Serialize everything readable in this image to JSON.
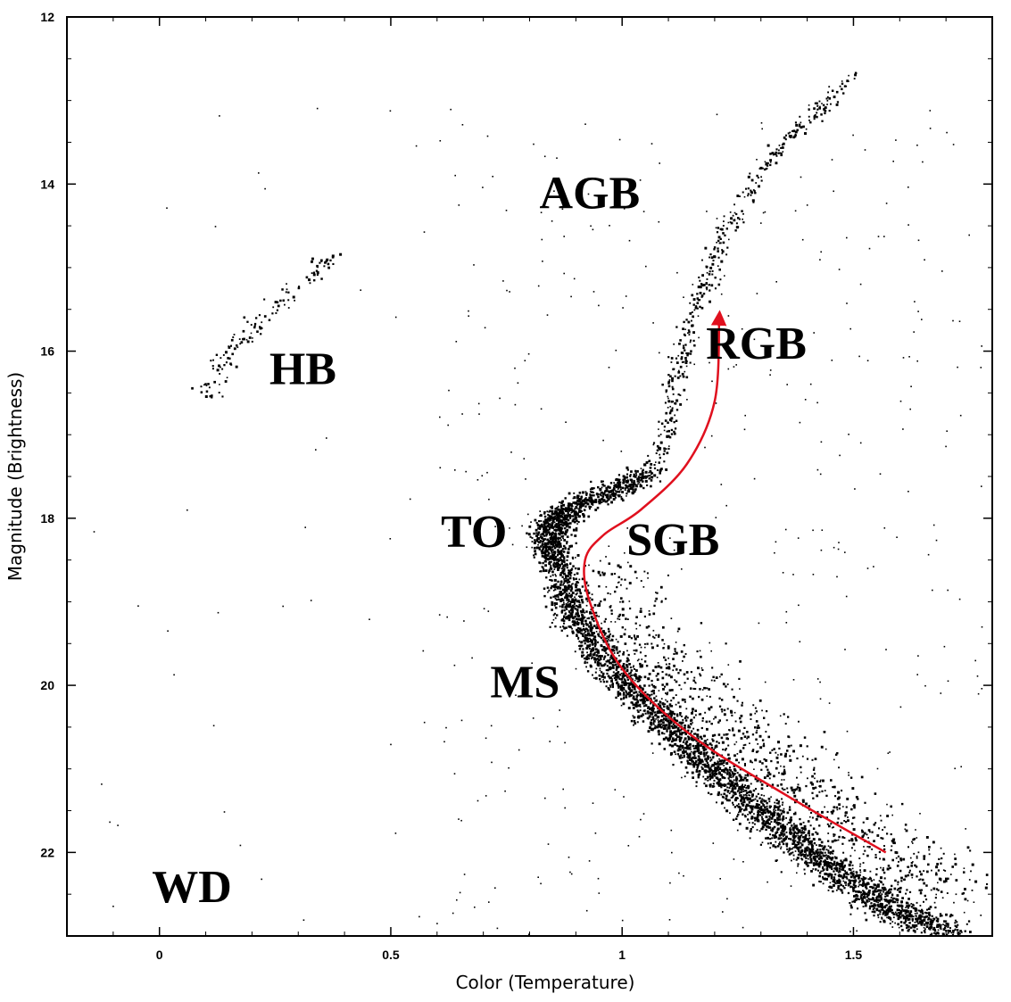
{
  "chart_data": {
    "type": "scatter",
    "title": "",
    "xlabel": "Color (Temperature)",
    "ylabel": "Magnitude (Brightness)",
    "xlim": [
      -0.2,
      1.8
    ],
    "ylim": [
      23.0,
      12.0
    ],
    "y_inverted": true,
    "xticks": [
      0,
      0.5,
      1,
      1.5
    ],
    "xtick_labels": [
      "0",
      "0.5",
      "1",
      "1.5"
    ],
    "yticks": [
      12,
      14,
      16,
      18,
      20,
      22
    ],
    "ytick_labels": [
      "12",
      "14",
      "16",
      "18",
      "20",
      "22"
    ],
    "grid": false,
    "legend": "none",
    "point_color": "#000000",
    "track_color": "#e0101e",
    "region_labels": [
      {
        "text": "AGB",
        "x": 0.93,
        "y": 14.1
      },
      {
        "text": "RGB",
        "x": 1.29,
        "y": 15.9
      },
      {
        "text": "HB",
        "x": 0.31,
        "y": 16.2
      },
      {
        "text": "TO",
        "x": 0.68,
        "y": 18.15
      },
      {
        "text": "SGB",
        "x": 1.11,
        "y": 18.25
      },
      {
        "text": "MS",
        "x": 0.79,
        "y": 19.95
      },
      {
        "text": "WD",
        "x": 0.07,
        "y": 22.4
      }
    ],
    "sequences": [
      {
        "name": "MS",
        "points": [
          [
            1.7,
            22.95
          ],
          [
            1.6,
            22.7
          ],
          [
            1.5,
            22.35
          ],
          [
            1.4,
            22.0
          ],
          [
            1.3,
            21.5
          ],
          [
            1.2,
            21.0
          ],
          [
            1.1,
            20.5
          ],
          [
            1.0,
            19.95
          ],
          [
            0.95,
            19.6
          ],
          [
            0.9,
            19.2
          ],
          [
            0.87,
            18.8
          ],
          [
            0.85,
            18.4
          ]
        ],
        "spread": 0.022,
        "density": 3200
      },
      {
        "name": "TO",
        "points": [
          [
            0.85,
            18.4
          ],
          [
            0.84,
            18.25
          ],
          [
            0.85,
            18.05
          ],
          [
            0.88,
            17.9
          ]
        ],
        "spread": 0.02,
        "density": 500
      },
      {
        "name": "SGB",
        "points": [
          [
            0.88,
            17.9
          ],
          [
            0.93,
            17.75
          ],
          [
            0.98,
            17.65
          ],
          [
            1.03,
            17.55
          ],
          [
            1.06,
            17.4
          ]
        ],
        "spread": 0.02,
        "density": 420
      },
      {
        "name": "RGB",
        "points": [
          [
            1.06,
            17.4
          ],
          [
            1.09,
            17.0
          ],
          [
            1.11,
            16.5
          ],
          [
            1.13,
            16.0
          ],
          [
            1.15,
            15.6
          ],
          [
            1.18,
            15.2
          ],
          [
            1.2,
            14.8
          ],
          [
            1.24,
            14.4
          ],
          [
            1.3,
            13.8
          ],
          [
            1.4,
            13.2
          ],
          [
            1.5,
            12.7
          ]
        ],
        "spread": 0.012,
        "density": 420
      },
      {
        "name": "HB",
        "points": [
          [
            0.1,
            16.6
          ],
          [
            0.12,
            16.2
          ],
          [
            0.16,
            15.9
          ],
          [
            0.22,
            15.6
          ],
          [
            0.3,
            15.2
          ],
          [
            0.38,
            14.8
          ]
        ],
        "spread": 0.015,
        "density": 130
      },
      {
        "name": "binaries",
        "points": [
          [
            1.72,
            22.5
          ],
          [
            1.55,
            21.9
          ],
          [
            1.4,
            21.3
          ],
          [
            1.25,
            20.6
          ],
          [
            1.1,
            19.9
          ],
          [
            1.0,
            19.3
          ],
          [
            0.95,
            18.6
          ]
        ],
        "spread": 0.06,
        "density": 900
      }
    ],
    "field_star_count": 450,
    "evolution_track": [
      [
        1.57,
        22.0
      ],
      [
        1.35,
        21.3
      ],
      [
        1.15,
        20.6
      ],
      [
        1.0,
        19.8
      ],
      [
        0.93,
        19.0
      ],
      [
        0.92,
        18.5
      ],
      [
        0.96,
        18.2
      ],
      [
        1.04,
        17.9
      ],
      [
        1.14,
        17.35
      ],
      [
        1.2,
        16.6
      ],
      [
        1.21,
        15.6
      ]
    ]
  }
}
